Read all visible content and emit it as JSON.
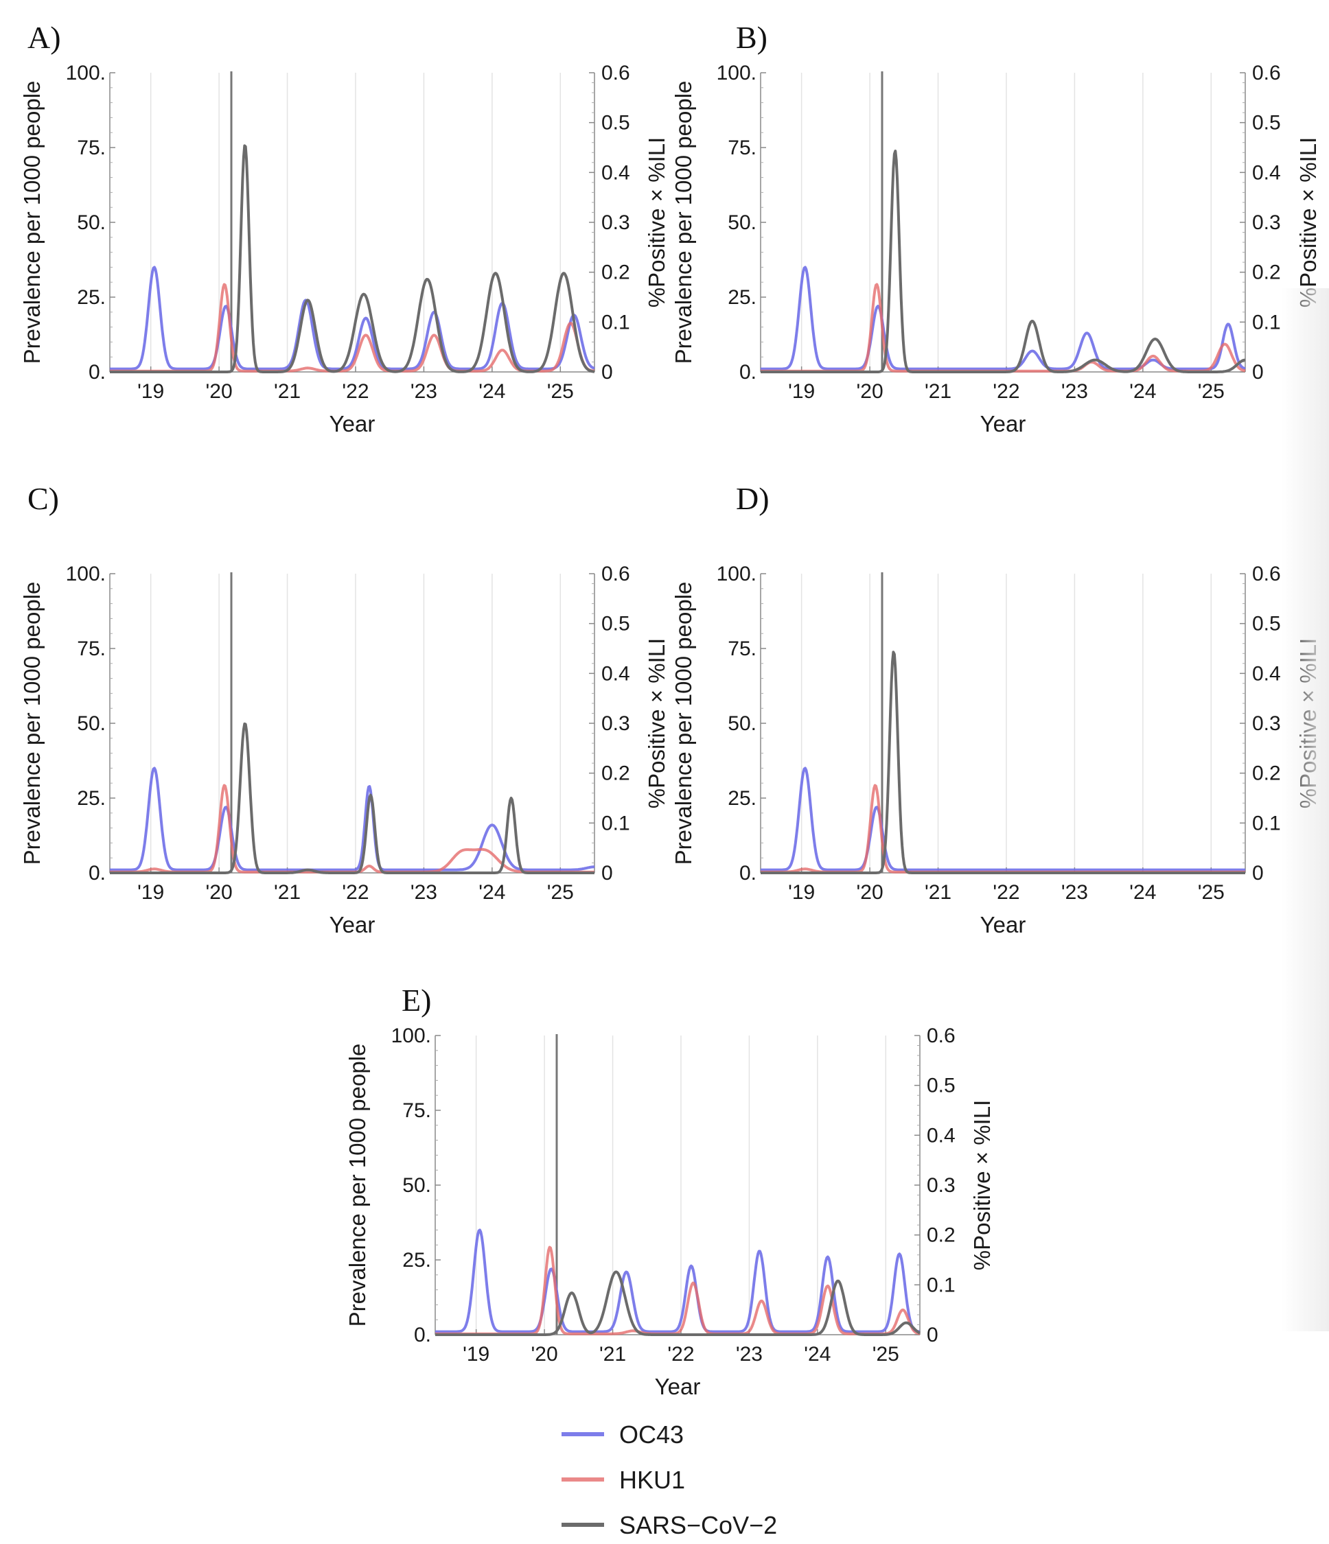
{
  "figure": {
    "legend": [
      {
        "name": "OC43",
        "color": "#6f6fe8"
      },
      {
        "name": "HKU1",
        "color": "#e56b6b"
      },
      {
        "name": "SARS−CoV−2",
        "color": "#6b6b6b"
      }
    ]
  },
  "chart_data": [
    {
      "panel": "A)",
      "type": "line",
      "title": "",
      "xlabel": "Year",
      "ylabel": "Prevalence per 1000 people",
      "ylabel_right": "%Positive × %ILI",
      "xlim": [
        2018.4,
        2025.5
      ],
      "ylim": [
        0,
        100
      ],
      "ylim_right": [
        0,
        0.6
      ],
      "x_ticks": [
        2019,
        2020,
        2021,
        2022,
        2023,
        2024,
        2025
      ],
      "x_tick_labels": [
        "'19",
        "'20",
        "'21",
        "'22",
        "'23",
        "'24",
        "'25"
      ],
      "y_tick_labels": [
        "0.",
        "25.",
        "50.",
        "75.",
        "100."
      ],
      "y_right_tick_labels": [
        "0",
        "0.1",
        "0.2",
        "0.3",
        "0.4",
        "0.5",
        "0.6"
      ],
      "intervention_x": 2020.18,
      "series": [
        {
          "name": "OC43",
          "baseline": 1,
          "peaks": [
            [
              2019.05,
              34,
              0.085
            ],
            [
              2020.1,
              21,
              0.085
            ],
            [
              2021.27,
              23,
              0.1
            ],
            [
              2022.15,
              17,
              0.1
            ],
            [
              2023.15,
              19,
              0.1
            ],
            [
              2024.15,
              22,
              0.1
            ],
            [
              2025.2,
              18,
              0.1
            ]
          ]
        },
        {
          "name": "HKU1",
          "baseline": 0.3,
          "peaks": [
            [
              2020.08,
              29,
              0.07
            ],
            [
              2021.3,
              1,
              0.1
            ],
            [
              2022.15,
              12,
              0.1
            ],
            [
              2023.15,
              12,
              0.1
            ],
            [
              2024.15,
              7,
              0.1
            ],
            [
              2025.15,
              16,
              0.1
            ]
          ]
        },
        {
          "name": "SARS−CoV−2",
          "baseline": 0,
          "peaks": [
            [
              2020.38,
              76,
              0.06
            ],
            [
              2021.3,
              24,
              0.11
            ],
            [
              2022.12,
              26,
              0.13
            ],
            [
              2023.05,
              31,
              0.13
            ],
            [
              2024.05,
              33,
              0.13
            ],
            [
              2025.05,
              33,
              0.13
            ]
          ]
        }
      ]
    },
    {
      "panel": "B)",
      "type": "line",
      "title": "",
      "xlabel": "Year",
      "ylabel": "Prevalence per 1000 people",
      "ylabel_right": "%Positive × %ILI",
      "xlim": [
        2018.4,
        2025.5
      ],
      "ylim": [
        0,
        100
      ],
      "ylim_right": [
        0,
        0.6
      ],
      "x_ticks": [
        2019,
        2020,
        2021,
        2022,
        2023,
        2024,
        2025
      ],
      "x_tick_labels": [
        "'19",
        "'20",
        "'21",
        "'22",
        "'23",
        "'24",
        "'25"
      ],
      "y_tick_labels": [
        "0.",
        "25.",
        "50.",
        "75.",
        "100."
      ],
      "y_right_tick_labels": [
        "0",
        "0.1",
        "0.2",
        "0.3",
        "0.4",
        "0.5",
        "0.6"
      ],
      "intervention_x": 2020.18,
      "series": [
        {
          "name": "OC43",
          "baseline": 1,
          "peaks": [
            [
              2019.05,
              34,
              0.085
            ],
            [
              2020.12,
              21,
              0.085
            ],
            [
              2022.38,
              6,
              0.1
            ],
            [
              2023.18,
              12,
              0.1
            ],
            [
              2024.15,
              3,
              0.1
            ],
            [
              2025.25,
              15,
              0.08
            ]
          ]
        },
        {
          "name": "HKU1",
          "baseline": 0.3,
          "peaks": [
            [
              2020.1,
              29,
              0.07
            ],
            [
              2023.25,
              3,
              0.1
            ],
            [
              2024.15,
              5,
              0.1
            ],
            [
              2025.2,
              9,
              0.1
            ]
          ]
        },
        {
          "name": "SARS−CoV−2",
          "baseline": 0,
          "peaks": [
            [
              2020.37,
              74,
              0.06
            ],
            [
              2022.38,
              17,
              0.1
            ],
            [
              2023.3,
              4,
              0.15
            ],
            [
              2024.18,
              11,
              0.13
            ],
            [
              2025.5,
              4,
              0.12
            ]
          ]
        }
      ]
    },
    {
      "panel": "C)",
      "type": "line",
      "title": "",
      "xlabel": "Year",
      "ylabel": "Prevalence per 1000 people",
      "ylabel_right": "%Positive × %ILI",
      "xlim": [
        2018.4,
        2025.5
      ],
      "ylim": [
        0,
        100
      ],
      "ylim_right": [
        0,
        0.6
      ],
      "x_ticks": [
        2019,
        2020,
        2021,
        2022,
        2023,
        2024,
        2025
      ],
      "x_tick_labels": [
        "'19",
        "'20",
        "'21",
        "'22",
        "'23",
        "'24",
        "'25"
      ],
      "y_tick_labels": [
        "0.",
        "25.",
        "50.",
        "75.",
        "100."
      ],
      "y_right_tick_labels": [
        "0",
        "0.1",
        "0.2",
        "0.3",
        "0.4",
        "0.5",
        "0.6"
      ],
      "intervention_x": 2020.18,
      "series": [
        {
          "name": "OC43",
          "baseline": 1,
          "peaks": [
            [
              2019.05,
              34,
              0.085
            ],
            [
              2020.1,
              21,
              0.085
            ],
            [
              2022.2,
              28,
              0.06
            ],
            [
              2024.0,
              15,
              0.14
            ],
            [
              2025.5,
              1,
              0.12
            ]
          ]
        },
        {
          "name": "HKU1",
          "baseline": 0.3,
          "peaks": [
            [
              2019.05,
              1,
              0.1
            ],
            [
              2020.08,
              29,
              0.07
            ],
            [
              2022.2,
              2,
              0.06
            ],
            [
              2023.55,
              6,
              0.15
            ],
            [
              2023.9,
              7,
              0.18
            ]
          ]
        },
        {
          "name": "SARS−CoV−2",
          "baseline": 0,
          "peaks": [
            [
              2020.38,
              50,
              0.07
            ],
            [
              2021.3,
              1,
              0.1
            ],
            [
              2022.22,
              26,
              0.06
            ],
            [
              2024.28,
              25,
              0.06
            ]
          ]
        }
      ]
    },
    {
      "panel": "D)",
      "type": "line",
      "title": "",
      "xlabel": "Year",
      "ylabel": "Prevalence per 1000 people",
      "ylabel_right": "%Positive × %ILI",
      "xlim": [
        2018.4,
        2025.5
      ],
      "ylim": [
        0,
        100
      ],
      "ylim_right": [
        0,
        0.6
      ],
      "x_ticks": [
        2019,
        2020,
        2021,
        2022,
        2023,
        2024,
        2025
      ],
      "x_tick_labels": [
        "'19",
        "'20",
        "'21",
        "'22",
        "'23",
        "'24",
        "'25"
      ],
      "y_tick_labels": [
        "0.",
        "25.",
        "50.",
        "75.",
        "100."
      ],
      "y_right_tick_labels": [
        "0",
        "0.1",
        "0.2",
        "0.3",
        "0.4",
        "0.5",
        "0.6"
      ],
      "intervention_x": 2020.18,
      "series": [
        {
          "name": "OC43",
          "baseline": 1,
          "peaks": [
            [
              2019.05,
              34,
              0.085
            ],
            [
              2020.1,
              21,
              0.085
            ]
          ]
        },
        {
          "name": "HKU1",
          "baseline": 0.3,
          "peaks": [
            [
              2019.05,
              1,
              0.1
            ],
            [
              2020.08,
              29,
              0.07
            ]
          ]
        },
        {
          "name": "SARS−CoV−2",
          "baseline": 0,
          "peaks": [
            [
              2020.35,
              74,
              0.06
            ]
          ]
        }
      ]
    },
    {
      "panel": "E)",
      "type": "line",
      "title": "",
      "xlabel": "Year",
      "ylabel": "Prevalence per 1000 people",
      "ylabel_right": "%Positive × %ILI",
      "xlim": [
        2018.4,
        2025.5
      ],
      "ylim": [
        0,
        100
      ],
      "ylim_right": [
        0,
        0.6
      ],
      "x_ticks": [
        2019,
        2020,
        2021,
        2022,
        2023,
        2024,
        2025
      ],
      "x_tick_labels": [
        "'19",
        "'20",
        "'21",
        "'22",
        "'23",
        "'24",
        "'25"
      ],
      "y_tick_labels": [
        "0.",
        "25.",
        "50.",
        "75.",
        "100."
      ],
      "y_right_tick_labels": [
        "0",
        "0.1",
        "0.2",
        "0.3",
        "0.4",
        "0.5",
        "0.6"
      ],
      "intervention_x": 2020.18,
      "series": [
        {
          "name": "OC43",
          "baseline": 1,
          "peaks": [
            [
              2019.05,
              34,
              0.085
            ],
            [
              2020.1,
              21,
              0.085
            ],
            [
              2021.2,
              20,
              0.09
            ],
            [
              2022.15,
              22,
              0.08
            ],
            [
              2023.15,
              27,
              0.08
            ],
            [
              2024.15,
              25,
              0.08
            ],
            [
              2025.2,
              26,
              0.08
            ]
          ]
        },
        {
          "name": "HKU1",
          "baseline": 0.3,
          "peaks": [
            [
              2020.08,
              29,
              0.07
            ],
            [
              2021.3,
              1,
              0.1
            ],
            [
              2022.18,
              17,
              0.08
            ],
            [
              2023.18,
              11,
              0.08
            ],
            [
              2024.15,
              16,
              0.08
            ],
            [
              2025.25,
              8,
              0.08
            ]
          ]
        },
        {
          "name": "SARS−CoV−2",
          "baseline": 0,
          "peaks": [
            [
              2020.4,
              14,
              0.1
            ],
            [
              2021.05,
              21,
              0.13
            ],
            [
              2024.3,
              18,
              0.1
            ],
            [
              2025.3,
              4,
              0.1
            ]
          ]
        }
      ]
    }
  ]
}
